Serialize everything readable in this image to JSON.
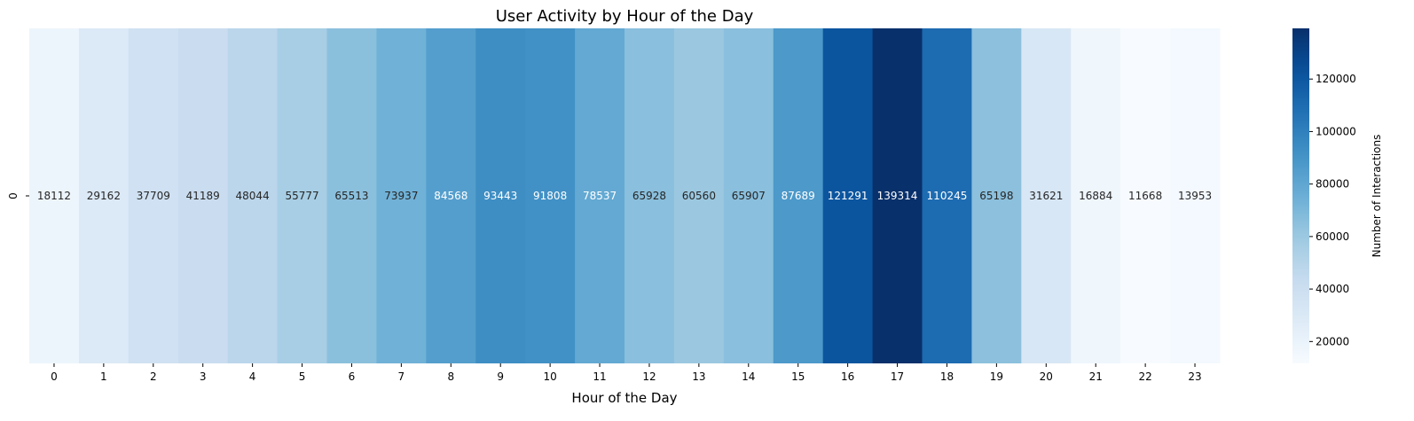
{
  "chart_data": {
    "type": "heatmap",
    "title": "User Activity by Hour of the Day",
    "xlabel": "Hour of the Day",
    "ylabel": "",
    "rows": [
      "0"
    ],
    "categories": [
      "0",
      "1",
      "2",
      "3",
      "4",
      "5",
      "6",
      "7",
      "8",
      "9",
      "10",
      "11",
      "12",
      "13",
      "14",
      "15",
      "16",
      "17",
      "18",
      "19",
      "20",
      "21",
      "22",
      "23"
    ],
    "values": [
      18112,
      29162,
      37709,
      41189,
      48044,
      55777,
      65513,
      73937,
      84568,
      93443,
      91808,
      78537,
      65928,
      60560,
      65907,
      87689,
      121291,
      139314,
      110245,
      65198,
      31621,
      16884,
      11668,
      13953
    ],
    "colormap": "Blues",
    "vmin": 11668,
    "vmax": 139314,
    "colorbar": {
      "label": "Number of Interactions",
      "ticks": [
        20000,
        40000,
        60000,
        80000,
        100000,
        120000
      ]
    },
    "annotations": true,
    "grid": false
  }
}
